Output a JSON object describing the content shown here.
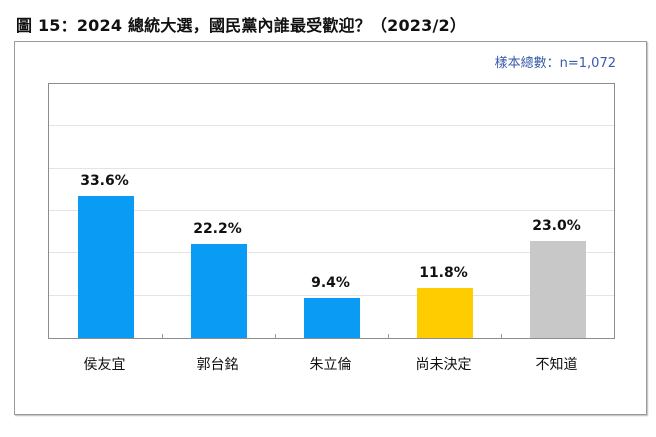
{
  "title": "圖 15：2024 總統大選，國民黨內誰最受歡迎？（2023/2）",
  "sample_size": "樣本總數：n=1,072",
  "chart_data": {
    "type": "bar",
    "title": "圖 15：2024 總統大選，國民黨內誰最受歡迎？（2023/2）",
    "subtitle": "樣本總數：n=1,072",
    "categories": [
      "侯友宜",
      "郭台銘",
      "朱立倫",
      "尚未決定",
      "不知道"
    ],
    "values": [
      33.6,
      22.2,
      9.4,
      11.8,
      23.0
    ],
    "labels": [
      "33.6%",
      "22.2%",
      "9.4%",
      "11.8%",
      "23.0%"
    ],
    "colors": [
      "#0a9cf5",
      "#0a9cf5",
      "#0a9cf5",
      "#ffcc00",
      "#c8c8c8"
    ],
    "xlabel": "",
    "ylabel": "",
    "ylim": [
      0,
      60
    ],
    "grid": true,
    "gridline_step": 10,
    "legend": "none"
  }
}
